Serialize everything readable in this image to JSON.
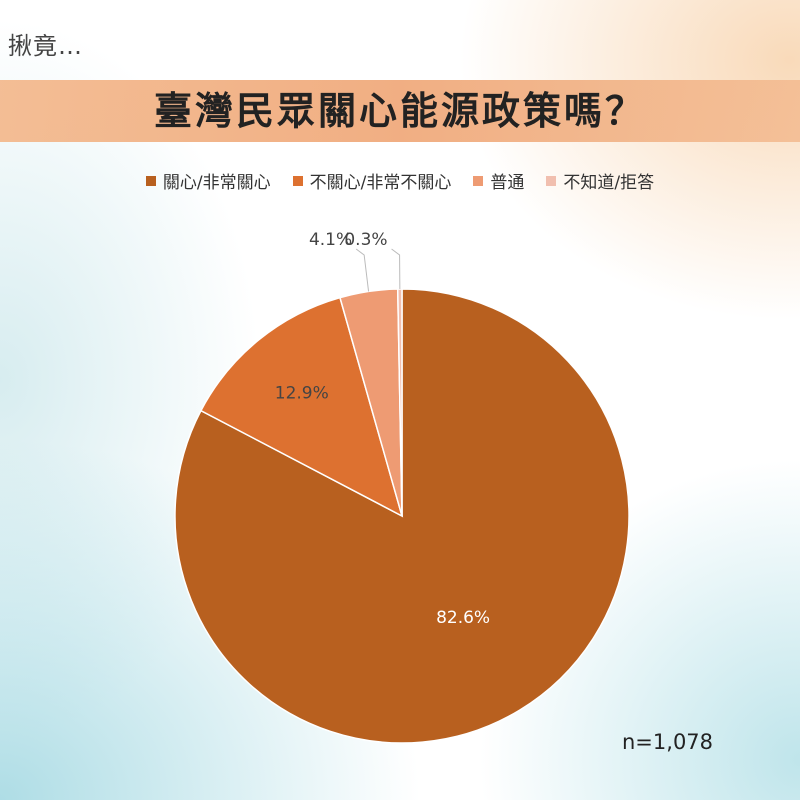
{
  "kicker": "揪竟…",
  "chart_data": {
    "type": "pie",
    "title": "臺灣民眾關心能源政策嗎？",
    "categories": [
      "關心/非常關心",
      "不關心/非常不關心",
      "普通",
      "不知道/拒答"
    ],
    "values": [
      82.6,
      12.9,
      4.1,
      0.3
    ],
    "value_labels": [
      "82.6%",
      "12.9%",
      "4.1%",
      "0.3%"
    ],
    "colors": [
      "#B8601F",
      "#DD7130",
      "#EE9B73",
      "#F1BFAF"
    ],
    "legend_position": "top",
    "note": "n=1,078"
  }
}
